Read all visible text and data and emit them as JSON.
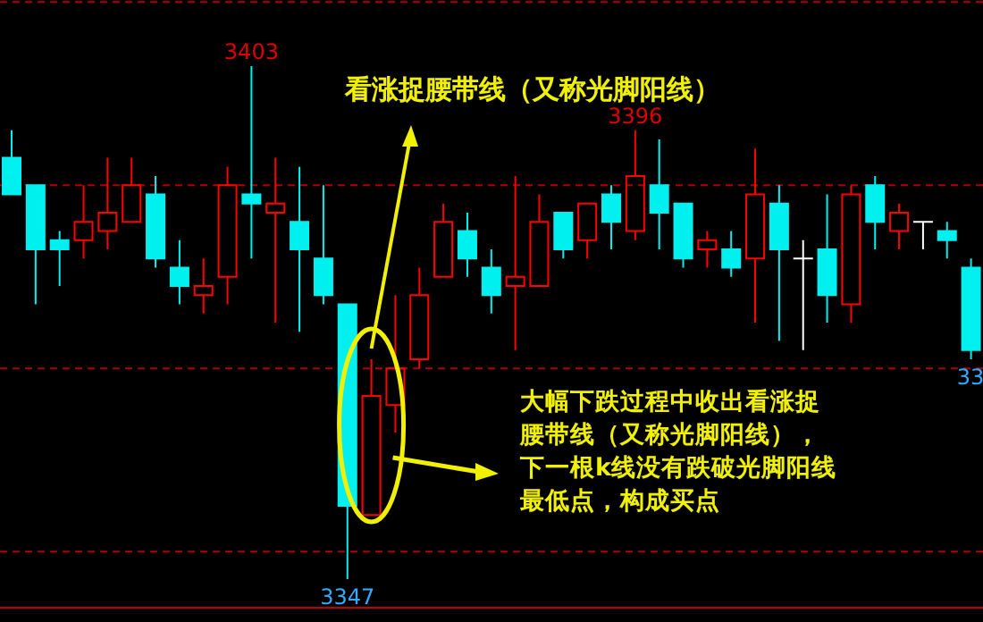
{
  "chart_data": {
    "type": "candlestick",
    "title": "看涨捉腰带线（又称光脚阳线）",
    "categories": [
      null,
      null,
      null,
      null,
      null,
      null,
      null,
      null,
      null,
      null,
      null,
      null,
      null,
      null,
      null,
      null,
      null,
      null,
      null,
      null,
      null,
      null,
      null,
      null,
      null,
      null,
      null,
      null,
      null,
      null,
      null,
      null,
      null,
      null,
      null,
      null,
      null,
      null,
      null,
      null,
      null
    ],
    "ohlc": [
      [
        3393,
        3396,
        3389,
        3389
      ],
      [
        3390,
        3390,
        3377,
        3383
      ],
      [
        3384,
        3385,
        3379,
        3383
      ],
      [
        3384,
        3390,
        3382,
        3386
      ],
      [
        3385,
        3393,
        3383,
        3387
      ],
      [
        3386,
        3393,
        3386,
        3390
      ],
      [
        3389,
        3391,
        3381,
        3382
      ],
      [
        3381,
        3384,
        3377,
        3379
      ],
      [
        3378,
        3382,
        3376,
        3379
      ],
      [
        3380,
        3392,
        3377,
        3390
      ],
      [
        3389,
        3403,
        3382,
        3388
      ],
      [
        3387,
        3393,
        3375,
        3388
      ],
      [
        3386,
        3392,
        3374,
        3383
      ],
      [
        3382,
        3390,
        3377,
        3378
      ],
      [
        3377,
        3377,
        3347,
        3355
      ],
      [
        3354,
        3371,
        3354,
        3367
      ],
      [
        3366,
        3378,
        3363,
        3370
      ],
      [
        3371,
        3381,
        3370,
        3378
      ],
      [
        3380,
        3388,
        3380,
        3386
      ],
      [
        3385,
        3387,
        3380,
        3382
      ],
      [
        3381,
        3383,
        3376,
        3378
      ],
      [
        3379,
        3391,
        3372,
        3380
      ],
      [
        3379,
        3389,
        3379,
        3386
      ],
      [
        3387,
        3387,
        3382,
        3383
      ],
      [
        3384,
        3388,
        3382,
        3388
      ],
      [
        3389,
        3390,
        3383,
        3386
      ],
      [
        3385,
        3396,
        3384,
        3391
      ],
      [
        3390,
        3395,
        3383,
        3387
      ],
      [
        3388,
        3388,
        3381,
        3382
      ],
      [
        3383,
        3385,
        3381,
        3384
      ],
      [
        3383,
        3385,
        3380,
        3381
      ],
      [
        3382,
        3394,
        3375,
        3389
      ],
      [
        3388,
        3390,
        3373,
        3383
      ],
      [
        3382,
        3384,
        3372,
        3382
      ],
      [
        3383,
        3389,
        3375,
        3378
      ],
      [
        3377,
        3390,
        3375,
        3389
      ],
      [
        3390,
        3391,
        3383,
        3386
      ],
      [
        3385,
        3388,
        3383,
        3387
      ],
      [
        3386,
        3386,
        3383,
        3386
      ],
      [
        3385,
        3386,
        3382,
        3384
      ],
      [
        3381,
        3382,
        3371,
        3372
      ]
    ],
    "colors": [
      "#00f0f0",
      "#00f0f0",
      "#00f0f0",
      "#ff0000",
      "#ff0000",
      "#ff0000",
      "#00f0f0",
      "#00f0f0",
      "#ff0000",
      "#ff0000",
      "#00f0f0",
      "#ff0000",
      "#00f0f0",
      "#00f0f0",
      "#00f0f0",
      "#ff0000",
      "#ff0000",
      "#ff0000",
      "#ff0000",
      "#00f0f0",
      "#00f0f0",
      "#ff0000",
      "#ff0000",
      "#00f0f0",
      "#ff0000",
      "#00f0f0",
      "#ff0000",
      "#00f0f0",
      "#00f0f0",
      "#ff0000",
      "#00f0f0",
      "#ff0000",
      "#00f0f0",
      "#ffffff",
      "#00f0f0",
      "#ff0000",
      "#00f0f0",
      "#ff0000",
      "#ffffff",
      "#00f0f0",
      "#00f0f0"
    ],
    "grid": "y",
    "yticks": [
      {
        "value": 3410,
        "label": null
      },
      {
        "value": 3390,
        "label": null
      },
      {
        "value": 3370,
        "label": null
      },
      {
        "value": 3350,
        "label": null
      }
    ],
    "annotations": [
      {
        "text": "3403",
        "y": 3403
      },
      {
        "text": "3396",
        "y": 3396
      },
      {
        "text": "3347",
        "y": 3347
      },
      {
        "text": "33",
        "y": 3371
      },
      "大幅下跌过程中收出看涨捉腰带线（又称光脚阳线），下一根k线没有跌破光脚阳线最低点，构成买点"
    ]
  }
}
